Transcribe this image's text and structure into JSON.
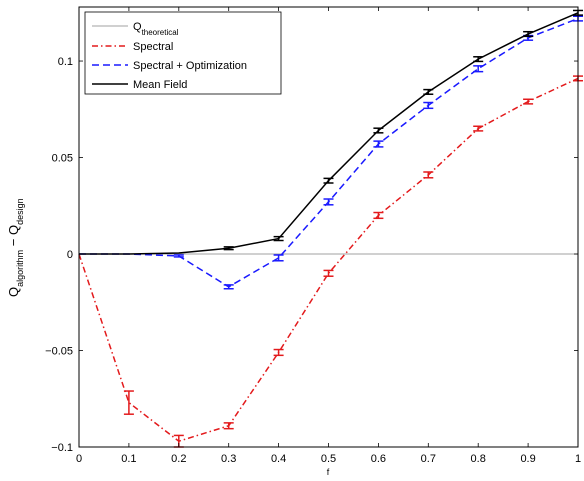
{
  "chart_data": {
    "type": "line",
    "xlabel": "f",
    "ylabel_main": "Q",
    "ylabel_sub1": "algorithm",
    "ylabel_mid": " − Q",
    "ylabel_sub2": "design",
    "xlim": [
      0,
      1
    ],
    "ylim": [
      -0.1,
      0.128
    ],
    "xticks": [
      0,
      0.1,
      0.2,
      0.3,
      0.4,
      0.5,
      0.6,
      0.7,
      0.8,
      0.9,
      1
    ],
    "xtick_labels": [
      "0",
      "0.1",
      "0.2",
      "0.3",
      "0.4",
      "0.5",
      "0.6",
      "0.7",
      "0.8",
      "0.9",
      "1"
    ],
    "yticks": [
      -0.1,
      -0.05,
      0,
      0.05,
      0.1
    ],
    "ytick_labels": [
      "−0.1",
      "−0.05",
      "0",
      "0.05",
      "0.1"
    ],
    "grid": false,
    "legend_position": "top-left",
    "x": [
      0,
      0.1,
      0.2,
      0.3,
      0.4,
      0.5,
      0.6,
      0.7,
      0.8,
      0.9,
      1
    ],
    "series": [
      {
        "name_main": "Q",
        "name_sub": "theoretical",
        "style": "solid-thin",
        "color": "#a0a0a0",
        "values": [
          0,
          0,
          0,
          0,
          0,
          0,
          0,
          0,
          0,
          0,
          0
        ],
        "errors": null
      },
      {
        "name": "Spectral",
        "style": "dashdot",
        "color": "#e31a1c",
        "values": [
          0,
          -0.077,
          -0.097,
          -0.089,
          -0.051,
          -0.01,
          0.02,
          0.041,
          0.065,
          0.079,
          0.091
        ],
        "errors": [
          0,
          0.006,
          0.003,
          0.0015,
          0.0015,
          0.0015,
          0.0015,
          0.0015,
          0.0012,
          0.0012,
          0.0012
        ]
      },
      {
        "name": "Spectral + Optimization",
        "style": "dashed",
        "color": "#1a1aff",
        "values": [
          0,
          0,
          -0.001,
          -0.017,
          -0.002,
          0.027,
          0.057,
          0.077,
          0.096,
          0.112,
          0.122
        ],
        "errors": [
          0,
          0,
          0.0005,
          0.001,
          0.0015,
          0.0015,
          0.0015,
          0.0015,
          0.0015,
          0.0012,
          0.0012
        ]
      },
      {
        "name": "Mean Field",
        "style": "solid",
        "color": "#000000",
        "values": [
          0,
          0,
          0.0005,
          0.003,
          0.008,
          0.038,
          0.064,
          0.084,
          0.101,
          0.114,
          0.125
        ],
        "errors": [
          0,
          0,
          0,
          0.0007,
          0.001,
          0.0012,
          0.0012,
          0.0012,
          0.0012,
          0.0012,
          0.0012
        ]
      }
    ]
  }
}
